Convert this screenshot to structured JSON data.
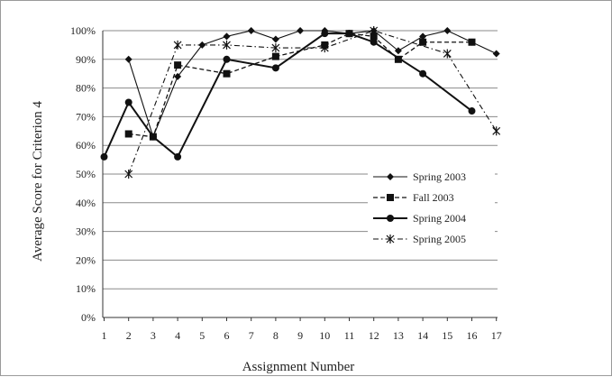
{
  "chart_data": {
    "type": "line",
    "title": "",
    "xlabel": "Assignment Number",
    "ylabel": "Average Score for Criterion 4",
    "x": [
      1,
      2,
      3,
      4,
      5,
      6,
      7,
      8,
      9,
      10,
      11,
      12,
      13,
      14,
      15,
      16,
      17
    ],
    "x_tick_labels": [
      "1",
      "2",
      "3",
      "4",
      "5",
      "6",
      "7",
      "8",
      "9",
      "10",
      "11",
      "12",
      "13",
      "14",
      "15",
      "16",
      "17"
    ],
    "ylim": [
      0,
      100
    ],
    "y_tick_labels": [
      "0%",
      "10%",
      "20%",
      "30%",
      "40%",
      "50%",
      "60%",
      "70%",
      "80%",
      "90%",
      "100%"
    ],
    "grid": "horizontal",
    "legend_position": "right",
    "series": [
      {
        "name": "Spring 2003",
        "line": "solid-thin",
        "marker": "diamond",
        "points": [
          [
            2,
            90
          ],
          [
            3,
            63
          ],
          [
            4,
            84
          ],
          [
            5,
            95
          ],
          [
            6,
            98
          ],
          [
            7,
            100
          ],
          [
            8,
            97
          ],
          [
            9,
            100
          ],
          [
            10,
            100
          ],
          [
            11,
            99
          ],
          [
            12,
            100
          ],
          [
            13,
            93
          ],
          [
            14,
            98
          ],
          [
            15,
            100
          ],
          [
            16,
            96
          ],
          [
            17,
            92
          ]
        ]
      },
      {
        "name": "Fall 2003",
        "line": "dashed",
        "marker": "square",
        "points": [
          [
            2,
            64
          ],
          [
            3,
            63
          ],
          [
            4,
            88
          ],
          [
            6,
            85
          ],
          [
            8,
            91
          ],
          [
            10,
            95
          ],
          [
            11,
            99
          ],
          [
            12,
            98
          ],
          [
            13,
            90
          ],
          [
            14,
            96
          ],
          [
            16,
            96
          ]
        ]
      },
      {
        "name": "Spring 2004",
        "line": "solid-thick",
        "marker": "circle",
        "points": [
          [
            1,
            56
          ],
          [
            2,
            75
          ],
          [
            3,
            63
          ],
          [
            4,
            56
          ],
          [
            6,
            90
          ],
          [
            8,
            87
          ],
          [
            10,
            99
          ],
          [
            11,
            99
          ],
          [
            12,
            96
          ],
          [
            14,
            85
          ],
          [
            16,
            72
          ]
        ]
      },
      {
        "name": "Spring 2005",
        "line": "dash-dot",
        "marker": "x",
        "points": [
          [
            2,
            50
          ],
          [
            4,
            95
          ],
          [
            6,
            95
          ],
          [
            8,
            94
          ],
          [
            10,
            94
          ],
          [
            12,
            100
          ],
          [
            15,
            92
          ],
          [
            17,
            65
          ]
        ]
      }
    ]
  }
}
